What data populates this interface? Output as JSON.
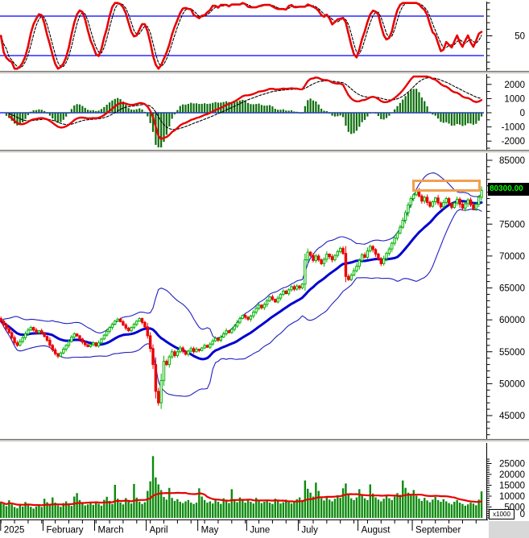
{
  "chart_data": {
    "type": "candlestick",
    "title": "",
    "x_labels": [
      "2025",
      "February",
      "March",
      "April",
      "May",
      "June",
      "July",
      "August",
      "September"
    ],
    "months": [
      {
        "label": "2025",
        "i": 0
      },
      {
        "label": "February",
        "i": 16
      },
      {
        "label": "March",
        "i": 35
      },
      {
        "label": "April",
        "i": 54
      },
      {
        "label": "May",
        "i": 73
      },
      {
        "label": "June",
        "i": 91
      },
      {
        "label": "July",
        "i": 110
      },
      {
        "label": "August",
        "i": 132
      },
      {
        "label": "September",
        "i": 152
      }
    ],
    "close": [
      59800,
      59200,
      58600,
      58000,
      57200,
      56400,
      56000,
      56600,
      57200,
      57800,
      58400,
      58800,
      58400,
      58000,
      58300,
      57900,
      57400,
      56800,
      56000,
      55300,
      54700,
      54300,
      54800,
      55400,
      56000,
      56600,
      57300,
      57800,
      57500,
      57000,
      56500,
      56100,
      55800,
      56100,
      56400,
      55900,
      56400,
      57000,
      57600,
      58200,
      58800,
      59300,
      59800,
      60100,
      59700,
      59200,
      58700,
      58300,
      58800,
      59300,
      59800,
      60200,
      59600,
      58900,
      57500,
      55500,
      53000,
      48800,
      47000,
      50500,
      53500,
      53000,
      54200,
      55000,
      54400,
      55000,
      55600,
      55100,
      54600,
      55100,
      55500,
      55000,
      55400,
      55200,
      55600,
      56000,
      55700,
      56200,
      56700,
      57100,
      56800,
      57300,
      57800,
      58300,
      58000,
      58500,
      59000,
      59600,
      60200,
      60700,
      60400,
      60100,
      60600,
      61200,
      61800,
      62300,
      61900,
      62400,
      63000,
      63600,
      63200,
      62800,
      63400,
      64000,
      64500,
      64100,
      64700,
      65200,
      64800,
      65300,
      65000,
      65600,
      69400,
      70600,
      70100,
      69300,
      70000,
      69400,
      68800,
      69500,
      70300,
      69900,
      69400,
      70100,
      70700,
      71200,
      70400,
      66800,
      66300,
      67000,
      67700,
      68400,
      69300,
      70200,
      69800,
      70800,
      71500,
      71000,
      70300,
      69500,
      68800,
      69600,
      70400,
      71100,
      72000,
      72800,
      73600,
      74500,
      75600,
      76800,
      78000,
      79000,
      79600,
      80200,
      79400,
      78600,
      79200,
      78400,
      77800,
      78500,
      79100,
      78300,
      77700,
      78400,
      79000,
      78200,
      77600,
      78300,
      78900,
      78100,
      77500,
      78200,
      78800,
      78000,
      77400,
      78100,
      79200,
      80300
    ],
    "volume_k": [
      7200,
      6300,
      5400,
      8100,
      6200,
      5000,
      4400,
      6100,
      5200,
      7300,
      6400,
      5100,
      4300,
      5200,
      6100,
      5000,
      8800,
      7200,
      6100,
      9400,
      7000,
      5800,
      5100,
      6800,
      7600,
      6300,
      5500,
      9800,
      11400,
      8200,
      6600,
      5700,
      6200,
      7100,
      6000,
      7400,
      6500,
      5600,
      8300,
      9700,
      7800,
      6400,
      15200,
      8800,
      7100,
      6200,
      9100,
      7700,
      6600,
      15600,
      9300,
      7500,
      6400,
      7200,
      12400,
      16800,
      28400,
      18600,
      15400,
      12800,
      9600,
      8400,
      13800,
      9200,
      7800,
      8600,
      7400,
      6800,
      7600,
      8200,
      7000,
      6400,
      7000,
      13600,
      9800,
      8200,
      7000,
      7600,
      6600,
      8800,
      7400,
      6400,
      9000,
      7800,
      6800,
      13200,
      8600,
      7200,
      9400,
      8000,
      7000,
      8600,
      7400,
      6600,
      9200,
      7800,
      6800,
      7400,
      8200,
      7000,
      6400,
      8800,
      7600,
      6600,
      7200,
      8400,
      7200,
      6600,
      7800,
      8600,
      9400,
      8200,
      17200,
      13400,
      11600,
      9800,
      16200,
      12400,
      9000,
      8000,
      9600,
      8400,
      7600,
      8800,
      10400,
      9200,
      13600,
      15800,
      10800,
      9000,
      8200,
      9400,
      13200,
      10400,
      9000,
      8200,
      15400,
      11200,
      9400,
      8400,
      7600,
      8800,
      10200,
      9000,
      8200,
      9800,
      11400,
      10600,
      17200,
      13800,
      11600,
      10400,
      12800,
      10200,
      8800,
      7800,
      9200,
      8000,
      7200,
      8400,
      9600,
      8200,
      7400,
      8600,
      7600,
      6800,
      6200,
      7400,
      8200,
      7000,
      6400,
      5600,
      6200,
      7000,
      6600,
      5800,
      8400,
      12200
    ],
    "last_price": "80300.00",
    "price_axis": {
      "ticks": [
        45000,
        50000,
        55000,
        60000,
        65000,
        70000,
        75000,
        80000,
        85000
      ]
    },
    "volume_axis": {
      "ticks": [
        0,
        5000,
        10000,
        15000,
        20000,
        25000
      ],
      "unit": "x1000"
    },
    "macd_axis": {
      "ticks": [
        -2000,
        -1000,
        0,
        1000,
        2000
      ],
      "params": {
        "fast": 12,
        "slow": 26,
        "signal": 9
      }
    },
    "stoch_axis": {
      "center_label": "50",
      "center": 50,
      "lines": [
        20,
        80
      ],
      "params": {
        "period": 10,
        "smooth": 5
      }
    },
    "indicators": {
      "bollinger": {
        "period": 20,
        "mult": 2
      },
      "volume_ma": 20
    }
  },
  "colors": {
    "candle_up": "#00b400",
    "candle_down": "#ee0000",
    "volume_bar": "#0c8a0c",
    "hist_bar": "#0d6e0d",
    "line_red": "#e80000",
    "line_signal": "#000000",
    "band_mid": "#0000d0",
    "band_outer": "#2020c0",
    "level_blue": "#0000ff",
    "annotation": "#f0a050",
    "label_bg": "#000000",
    "label_fg": "#00ff00"
  },
  "labels": {
    "multiplier": "x1000"
  }
}
